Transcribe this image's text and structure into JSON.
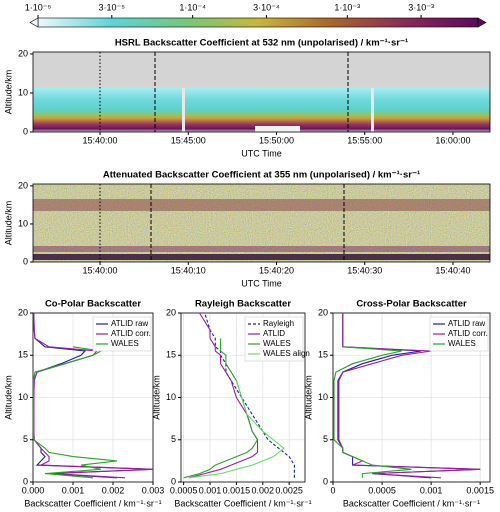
{
  "chart_data": [
    {
      "type": "colorbar",
      "log": true,
      "clim": [
        1e-05,
        0.007
      ],
      "colors": [
        "#eef8fa",
        "#5fd3d8",
        "#72c87a",
        "#c7b640",
        "#a8662c",
        "#8a2a57",
        "#5b0a5c"
      ],
      "ticks": [
        {
          "value": 1e-05,
          "label": "1·10⁻⁵"
        },
        {
          "value": 3e-05,
          "label": "3·10⁻⁵"
        },
        {
          "value": 0.0001,
          "label": "1·10⁻⁴"
        },
        {
          "value": 0.0003,
          "label": "3·10⁻⁴"
        },
        {
          "value": 0.001,
          "label": "1·10⁻³"
        },
        {
          "value": 0.003,
          "label": "3·10⁻³"
        }
      ]
    },
    {
      "type": "heatmap",
      "title": "HSRL Backscatter Coefficient at 532 nm (unpolarised) / km⁻¹·sr⁻¹",
      "xlabel": "UTC Time",
      "ylabel": "Altitude/km",
      "xlim": [
        56172,
        57726
      ],
      "ylim": [
        0,
        20.5
      ],
      "xticks": [
        {
          "value": 56400,
          "label": "15:40:00"
        },
        {
          "value": 56700,
          "label": "15:45:00"
        },
        {
          "value": 57000,
          "label": "15:50:00"
        },
        {
          "value": 57300,
          "label": "15:55:00"
        },
        {
          "value": 57600,
          "label": "16:00:00"
        }
      ],
      "yticks": [
        0,
        10,
        20
      ]
    },
    {
      "type": "heatmap",
      "title": "Attenuated Backscatter Coefficient at 355 nm (unpolarised) / km⁻¹·sr⁻¹",
      "xlabel": "UTC Time",
      "ylabel": "Altitude/km",
      "xlim": [
        56392.4,
        56444.2
      ],
      "ylim": [
        0,
        20.5
      ],
      "xticks": [
        {
          "value": 56400,
          "label": "15:40:00"
        },
        {
          "value": 56410,
          "label": "15:40:10"
        },
        {
          "value": 56420,
          "label": "15:40:20"
        },
        {
          "value": 56430,
          "label": "15:40:30"
        },
        {
          "value": 56440,
          "label": "15:40:40"
        }
      ],
      "yticks": [
        0,
        10,
        20
      ]
    },
    {
      "type": "profile",
      "title": "Co-Polar Backscatter",
      "xlabel": "Backscatter Coefficient / km⁻¹·sr⁻¹",
      "ylabel": "Altitude/km",
      "xlim": [
        0,
        0.003
      ],
      "ylim": [
        0,
        20
      ],
      "grid": true,
      "legend": "upper right",
      "xticks": [
        {
          "value": 0,
          "label": "0.000"
        },
        0.001,
        0.002,
        0.003
      ],
      "yticks": [
        0,
        5,
        10,
        15,
        20
      ],
      "altitude": [
        0.5,
        1,
        1.5,
        2,
        2.5,
        3,
        3.5,
        4,
        5,
        6,
        8,
        10,
        12,
        13,
        14,
        15,
        15.5,
        16,
        17,
        18,
        20
      ],
      "series": [
        {
          "name": "ATLID raw",
          "color": "#1f1f9e",
          "values": [
            0.0021,
            0.0004,
            0.003,
            0.0001,
            0.0002,
            0.0003,
            0.0002,
            0.0002,
            3e-05,
            2e-05,
            2e-05,
            2e-05,
            3e-05,
            0.0001,
            0.0007,
            0.0012,
            0.0013,
            0.0003,
            5e-05,
            3e-05,
            2e-05
          ]
        },
        {
          "name": "ATLID corr.",
          "color": "#9b1f9b",
          "values": [
            0.0023,
            0.0005,
            0.003,
            0.0002,
            0.0004,
            0.0004,
            0.0003,
            0.0002,
            3e-05,
            2e-05,
            2e-05,
            2e-05,
            3e-05,
            0.0001,
            0.0008,
            0.0015,
            0.0016,
            0.0004,
            5e-05,
            3e-05,
            2e-05
          ]
        },
        {
          "name": "WALES",
          "color": "#2ca02c",
          "values": [
            0.0015,
            0.0003,
            0.0017,
            0.0012,
            0.0021,
            0.001,
            0.0004,
            0.0003,
            2e-05,
            1e-05,
            1e-05,
            1e-05,
            1e-05,
            5e-05,
            0.0008,
            0.0015,
            0.0017,
            0.001,
            null,
            null,
            null
          ]
        }
      ]
    },
    {
      "type": "profile",
      "title": "Rayleigh Backscatter",
      "xlabel": "Backscatter Coefficient / km⁻¹·sr⁻¹",
      "ylabel": "Altitude/km",
      "xlim": [
        0.00045,
        0.0028
      ],
      "ylim": [
        0,
        20
      ],
      "grid": true,
      "legend": "upper right",
      "xticks": [
        0.0005,
        0.001,
        0.0015,
        0.002,
        0.0025
      ],
      "yticks": [
        0,
        5,
        10,
        15,
        20
      ],
      "altitude": [
        0.5,
        1,
        1.5,
        2,
        2.5,
        3,
        3.5,
        4,
        5,
        6,
        8,
        10,
        12,
        13,
        14,
        15,
        15.5,
        16,
        17,
        18,
        20
      ],
      "series": [
        {
          "name": "Rayleigh",
          "color": "#1f1f9e",
          "linestyle": "dashed",
          "values": [
            0.0026,
            0.0026,
            0.0026,
            0.0026,
            0.00255,
            0.0025,
            0.0024,
            0.0023,
            0.0021,
            0.002,
            0.0018,
            0.0016,
            0.0014,
            0.0013,
            0.0013,
            0.0012,
            0.0012,
            0.0011,
            0.0011,
            0.001,
            0.0009
          ]
        },
        {
          "name": "ATLID",
          "color": "#9b1f9b",
          "values": [
            0.0006,
            0.0009,
            0.0012,
            0.0014,
            0.0016,
            0.0018,
            0.0019,
            0.0019,
            0.0019,
            0.0018,
            0.0017,
            0.0015,
            0.0014,
            0.0013,
            0.0012,
            0.0012,
            0.0011,
            0.0011,
            0.001,
            0.001,
            0.0008
          ]
        },
        {
          "name": "WALES",
          "color": "#2ca02c",
          "values": [
            0.0005,
            0.0008,
            0.001,
            0.0011,
            0.0013,
            0.0015,
            0.0017,
            0.0018,
            0.0019,
            0.0018,
            0.0017,
            0.0016,
            0.0015,
            0.0014,
            0.0013,
            0.0013,
            0.0012,
            0.0012,
            0.0012,
            null,
            null
          ]
        },
        {
          "name": "WALES align",
          "color": "#66dd66",
          "values": [
            0.0006,
            0.0012,
            0.0015,
            0.0018,
            0.002,
            0.0022,
            0.0023,
            0.0024,
            0.0022,
            0.002,
            0.0017,
            0.0016,
            0.0015,
            null,
            null,
            null,
            null,
            null,
            null,
            null,
            null
          ]
        }
      ]
    },
    {
      "type": "profile",
      "title": "Cross-Polar Backscatter",
      "xlabel": "Backscatter Coefficient / km⁻¹·sr⁻¹",
      "ylabel": "Altitude/km",
      "xlim": [
        0,
        0.0016
      ],
      "ylim": [
        0,
        20
      ],
      "grid": true,
      "legend": "upper right",
      "xticks": [
        0,
        0.0005,
        0.001,
        0.0015
      ],
      "yticks": [
        0,
        5,
        10,
        15,
        20
      ],
      "altitude": [
        0.5,
        1,
        1.5,
        2,
        2.5,
        3,
        3.5,
        4,
        5,
        6,
        8,
        10,
        12,
        13,
        14,
        15,
        15.5,
        16,
        17,
        18,
        20
      ],
      "series": [
        {
          "name": "ATLID raw",
          "color": "#1f1f9e",
          "values": [
            0.001,
            0.0004,
            0.0015,
            0.0002,
            0.0002,
            0.0002,
            0.0001,
            0.0001,
            5e-05,
            5e-05,
            5e-05,
            5e-05,
            5e-05,
            0.0001,
            0.0003,
            0.0006,
            0.0009,
            0.0001,
            0.0001,
            0.0001,
            0.0001
          ]
        },
        {
          "name": "ATLID corr.",
          "color": "#9b1f9b",
          "values": [
            0.0011,
            0.0004,
            0.0015,
            0.0002,
            0.0003,
            0.0002,
            0.0001,
            0.0001,
            6e-05,
            6e-05,
            6e-05,
            6e-05,
            6e-05,
            0.0001,
            0.0004,
            0.0007,
            0.001,
            0.0001,
            0.0001,
            0.0001,
            0.0001
          ]
        },
        {
          "name": "WALES",
          "color": "#2ca02c",
          "values": [
            0.0003,
            0.0003,
            0.0008,
            0.0004,
            0.0003,
            0.0002,
            0.0001,
            0.0001,
            1e-05,
            1e-05,
            1e-05,
            1e-05,
            1e-05,
            3e-05,
            0.0002,
            0.0005,
            0.0007,
            0.0001,
            null,
            null,
            null
          ]
        }
      ]
    }
  ]
}
